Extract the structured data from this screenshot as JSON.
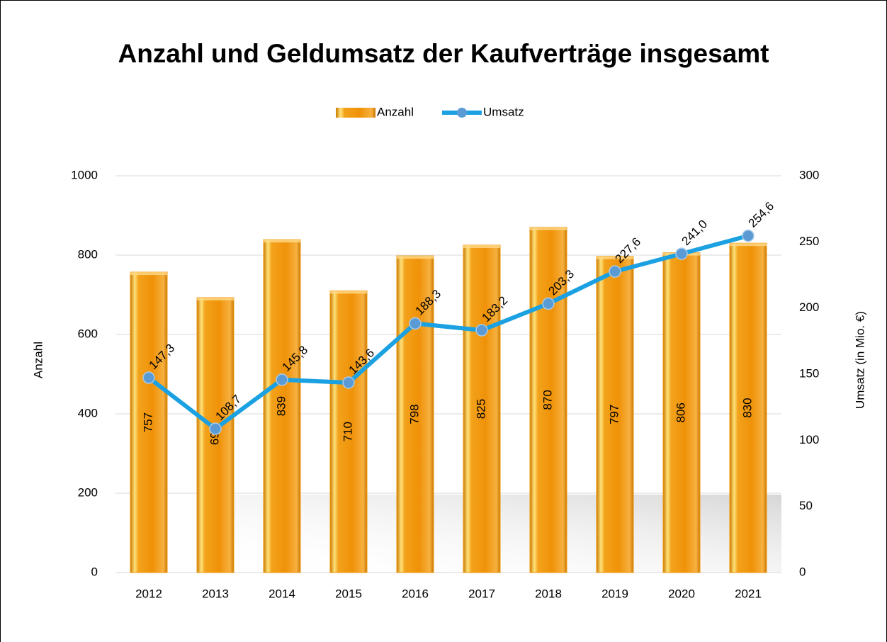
{
  "chart_data": {
    "type": "combo",
    "title": "Anzahl und Geldumsatz der Kaufverträge insgesamt",
    "y_label": "Anzahl",
    "y2_label": "Umsatz (in Mio. €)",
    "categories": [
      "2012",
      "2013",
      "2014",
      "2015",
      "2016",
      "2017",
      "2018",
      "2019",
      "2020",
      "2021"
    ],
    "series": [
      {
        "name": "Anzahl",
        "type": "bar",
        "color": "#f0960a",
        "axis": "y",
        "values": [
          757,
          693,
          839,
          710,
          798,
          825,
          870,
          797,
          806,
          830
        ]
      },
      {
        "name": "Umsatz",
        "type": "line",
        "color": "#1ba1e2",
        "marker_color": "#5b9bd5",
        "axis": "y2",
        "values": [
          147.3,
          108.7,
          145.8,
          143.6,
          188.3,
          183.2,
          203.3,
          227.6,
          241.0,
          254.6
        ],
        "value_labels": [
          "147,3",
          "108,7",
          "145,8",
          "143,6",
          "188,3",
          "183,2",
          "203,3",
          "227,6",
          "241,0",
          "254,6"
        ]
      }
    ],
    "ylim": [
      0,
      1000
    ],
    "yticks": [
      0,
      200,
      400,
      600,
      800,
      1000
    ],
    "y2lim": [
      0,
      300
    ],
    "y2ticks": [
      0,
      50,
      100,
      150,
      200,
      250,
      300
    ],
    "grid": true,
    "legend": "top"
  }
}
